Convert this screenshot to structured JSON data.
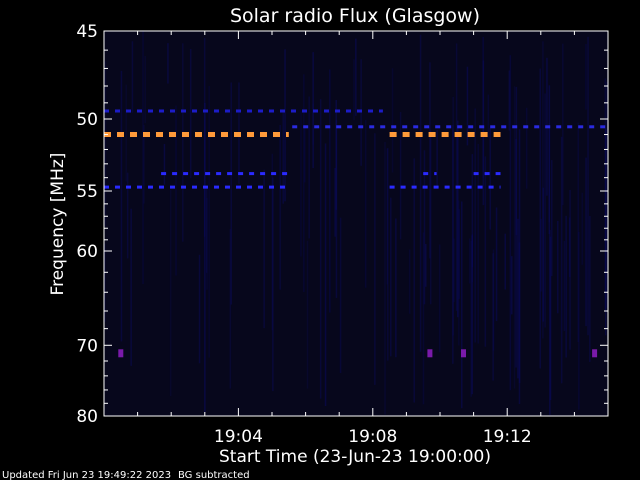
{
  "chart_data": {
    "type": "heatmap",
    "title": "Solar radio Flux (Glasgow)",
    "xlabel": "Start Time (23-Jun-23 19:00:00)",
    "ylabel": "Frequency [MHz]",
    "x_unit": "minutes after 19:00:00",
    "xlim": [
      0,
      15
    ],
    "ylim": [
      45,
      80
    ],
    "y_scale": "reciprocal",
    "x_ticks": [
      {
        "value": 4,
        "label": "19:04"
      },
      {
        "value": 8,
        "label": "19:08"
      },
      {
        "value": 12,
        "label": "19:12"
      }
    ],
    "y_ticks": [
      {
        "value": 45,
        "label": "45"
      },
      {
        "value": 50,
        "label": "50"
      },
      {
        "value": 55,
        "label": "55"
      },
      {
        "value": 60,
        "label": "60"
      },
      {
        "value": 70,
        "label": "70"
      },
      {
        "value": 80,
        "label": "80"
      }
    ],
    "colors": {
      "background": "#000000",
      "plot_background": "#07071c",
      "low": "#0a0a5a",
      "mid": "#2a2aff",
      "high": "#ff9a3a",
      "spot": "#7a1aaa"
    },
    "bands": [
      {
        "freq": 49.5,
        "start": 0.0,
        "end": 8.3,
        "color": "#1c1cc8",
        "level": 0.35
      },
      {
        "freq": 50.5,
        "start": 5.6,
        "end": 15.0,
        "color": "#2a2ae0",
        "level": 0.4
      },
      {
        "freq": 51.0,
        "start": 0.0,
        "end": 5.5,
        "color": "#ff9a3a",
        "level": 1.0
      },
      {
        "freq": 51.0,
        "start": 8.5,
        "end": 11.8,
        "color": "#ff9a3a",
        "level": 1.0
      },
      {
        "freq": 53.7,
        "start": 1.7,
        "end": 5.5,
        "color": "#2a2aff",
        "level": 0.6
      },
      {
        "freq": 53.7,
        "start": 9.5,
        "end": 9.9,
        "color": "#2a2aff",
        "level": 0.6
      },
      {
        "freq": 53.7,
        "start": 11.0,
        "end": 11.8,
        "color": "#2a2aff",
        "level": 0.6
      },
      {
        "freq": 54.7,
        "start": 0.0,
        "end": 5.5,
        "color": "#2a2aff",
        "level": 0.65
      },
      {
        "freq": 54.7,
        "start": 8.5,
        "end": 11.8,
        "color": "#2a2aff",
        "level": 0.65
      }
    ],
    "spots": [
      {
        "time": 0.5,
        "freq": 71.0
      },
      {
        "time": 9.7,
        "freq": 71.0
      },
      {
        "time": 10.7,
        "freq": 71.0
      },
      {
        "time": 14.6,
        "freq": 71.0
      }
    ]
  },
  "footer": {
    "updated": "Updated Fri Jun 23 19:49:22 2023",
    "bg_note": "BG subtracted"
  }
}
